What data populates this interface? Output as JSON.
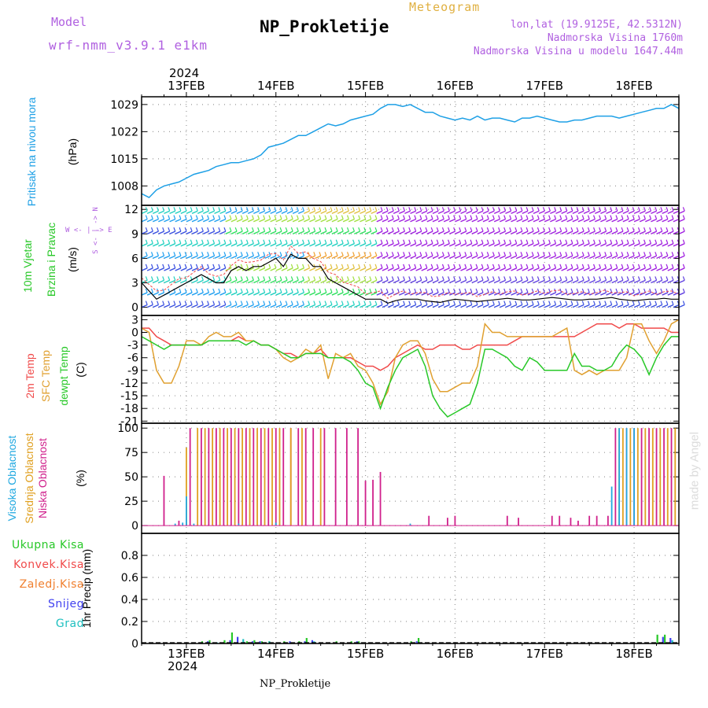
{
  "header": {
    "model_label": "Model",
    "model_name": "wrf-nmm_v3.9.1 e1km",
    "title": "NP_Prokletije",
    "subtitle": "Meteogram",
    "lonlat": "lon,lat (19.9125E, 42.5312N)",
    "altitude": "Nadmorska Visina 1760m",
    "model_altitude": "Nadmorska Visina u modelu 1647.44m",
    "watermark": "made by Angel",
    "footer": "NP_Prokletije"
  },
  "time_axis": {
    "year": "2024",
    "days": [
      "13FEB",
      "14FEB",
      "15FEB",
      "16FEB",
      "17FEB",
      "18FEB"
    ],
    "start_hour_offset": -12,
    "end_hour_offset": 132
  },
  "panels": {
    "pressure": {
      "label": "Pritisak na nivou mora",
      "unit": "(hPa)",
      "color": "#1ea0e6",
      "ticks": [
        "1008",
        "1015",
        "1022",
        "1029"
      ]
    },
    "wind": {
      "label1": "10m Vjetar",
      "label2": "Brzina i Pravac",
      "unit": "(m/s)",
      "compass": "W <- | -> E",
      "compass_ns": "S <- | -> N",
      "ticks": [
        "0",
        "3",
        "6",
        "9",
        "12"
      ]
    },
    "temperature": {
      "label1": "2m Temp",
      "label2": "SFC Temp",
      "label3": "dewpt Temp",
      "unit": "(C)",
      "colors": {
        "t2m": "#f04a4a",
        "sfc": "#e0a030",
        "dew": "#28c828"
      },
      "ticks": [
        "3",
        "0",
        "-3",
        "-6",
        "-9",
        "-12",
        "-15",
        "-18",
        "-21"
      ]
    },
    "cloud": {
      "label1": "Visoka Oblacnost",
      "label2": "Srednja Oblacnost",
      "label3": "Niska Oblacnost",
      "unit": "(%)",
      "colors": {
        "high": "#20a8e0",
        "mid": "#e0a020",
        "low": "#d0208c"
      },
      "ticks": [
        "0",
        "25",
        "50",
        "75",
        "100"
      ]
    },
    "precip": {
      "unit": "1hr Precip (mm)",
      "legend": [
        {
          "label": "Ukupna Kisa",
          "color": "#28c828"
        },
        {
          "label": "Konvek.Kisa",
          "color": "#f04a4a"
        },
        {
          "label": "Zaledj.Kisa",
          "color": "#f08030"
        },
        {
          "label": "Snijeg",
          "color": "#4040f0"
        },
        {
          "label": "Grad",
          "color": "#20c0c0"
        }
      ],
      "ticks": [
        "0",
        "0.2",
        "0.4",
        "0.6",
        "0.8"
      ]
    }
  },
  "chart_data": [
    {
      "type": "line",
      "name": "pressure",
      "x_unit": "hours from 13FEB 00UTC",
      "x": [
        -12,
        -10,
        -8,
        -6,
        -4,
        -2,
        0,
        2,
        4,
        6,
        8,
        10,
        12,
        14,
        16,
        18,
        20,
        22,
        24,
        26,
        28,
        30,
        32,
        34,
        36,
        38,
        40,
        42,
        44,
        46,
        48,
        50,
        52,
        54,
        56,
        58,
        60,
        62,
        64,
        66,
        68,
        70,
        72,
        74,
        76,
        78,
        80,
        82,
        84,
        86,
        88,
        90,
        92,
        94,
        96,
        98,
        100,
        102,
        104,
        106,
        108,
        110,
        112,
        114,
        116,
        118,
        120,
        122,
        124,
        126,
        128,
        130,
        132
      ],
      "y": [
        1006,
        1005,
        1007,
        1008,
        1008.5,
        1009,
        1010,
        1011,
        1011.5,
        1012,
        1013,
        1013.5,
        1014,
        1014,
        1014.5,
        1015,
        1016,
        1018,
        1018.5,
        1019,
        1020,
        1021,
        1021,
        1022,
        1023,
        1024,
        1023.5,
        1024,
        1025,
        1025.5,
        1026,
        1026.5,
        1028,
        1029,
        1029,
        1028.5,
        1029,
        1028,
        1027,
        1027,
        1026,
        1025.5,
        1025,
        1025.5,
        1025,
        1026,
        1025,
        1025.5,
        1025.5,
        1025,
        1024.5,
        1025.5,
        1025.5,
        1026,
        1025.5,
        1025,
        1024.5,
        1024.5,
        1025,
        1025,
        1025.5,
        1026,
        1026,
        1026,
        1025.5,
        1026,
        1026.5,
        1027,
        1027.5,
        1028,
        1028,
        1029,
        1028
      ],
      "ylim": [
        1003,
        1031
      ]
    },
    {
      "type": "line",
      "name": "2m Temp",
      "x": [
        -12,
        -10,
        -8,
        -6,
        -4,
        -2,
        0,
        2,
        4,
        6,
        8,
        10,
        12,
        14,
        16,
        18,
        20,
        22,
        24,
        26,
        28,
        30,
        32,
        34,
        36,
        38,
        40,
        42,
        44,
        46,
        48,
        50,
        52,
        54,
        56,
        58,
        60,
        62,
        64,
        66,
        68,
        70,
        72,
        74,
        76,
        78,
        80,
        82,
        84,
        86,
        88,
        90,
        92,
        94,
        96,
        98,
        100,
        102,
        104,
        106,
        108,
        110,
        112,
        114,
        116,
        118,
        120,
        122,
        124,
        126,
        128,
        130,
        132
      ],
      "y": [
        1,
        1,
        -1,
        -2,
        -3,
        -3,
        -3,
        -3,
        -3,
        -2,
        -2,
        -2,
        -2,
        -1,
        -2,
        -2,
        -3,
        -3,
        -4,
        -5,
        -5,
        -6,
        -5,
        -5,
        -4,
        -6,
        -6,
        -6,
        -6,
        -7,
        -8,
        -8,
        -9,
        -8,
        -6,
        -5,
        -4,
        -3,
        -4,
        -4,
        -3,
        -3,
        -3,
        -4,
        -4,
        -3,
        -3,
        -3,
        -3,
        -3,
        -2,
        -1,
        -1,
        -1,
        -1,
        -1,
        -1,
        -1,
        -1,
        0,
        1,
        2,
        2,
        2,
        1,
        2,
        2,
        1,
        1,
        1,
        1,
        0,
        0
      ],
      "ylim": [
        -21,
        3
      ]
    },
    {
      "type": "line",
      "name": "SFC Temp",
      "x": [
        -12,
        -10,
        -8,
        -6,
        -4,
        -2,
        0,
        2,
        4,
        6,
        8,
        10,
        12,
        14,
        16,
        18,
        20,
        22,
        24,
        26,
        28,
        30,
        32,
        34,
        36,
        38,
        40,
        42,
        44,
        46,
        48,
        50,
        52,
        54,
        56,
        58,
        60,
        62,
        64,
        66,
        68,
        70,
        72,
        74,
        76,
        78,
        80,
        82,
        84,
        86,
        88,
        90,
        92,
        94,
        96,
        98,
        100,
        102,
        104,
        106,
        108,
        110,
        112,
        114,
        116,
        118,
        120,
        122,
        124,
        126,
        128,
        130,
        132
      ],
      "y": [
        1,
        0,
        -9,
        -12,
        -12,
        -8,
        -2,
        -2,
        -3,
        -1,
        0,
        -1,
        -1,
        0,
        -2,
        -2,
        -3,
        -3,
        -4,
        -6,
        -7,
        -6,
        -4,
        -5,
        -3,
        -11,
        -5,
        -6,
        -5,
        -8,
        -9,
        -12,
        -17,
        -14,
        -6,
        -3,
        -2,
        -2,
        -5,
        -11,
        -14,
        -14,
        -13,
        -12,
        -12,
        -8,
        2,
        0,
        0,
        -1,
        -1,
        -1,
        -1,
        -1,
        -1,
        -1,
        0,
        1,
        -9,
        -10,
        -9,
        -10,
        -9,
        -9,
        -9,
        -6,
        2,
        2,
        -2,
        -5,
        -2,
        2,
        3
      ],
      "ylim": [
        -21,
        3
      ]
    },
    {
      "type": "line",
      "name": "dewpt Temp",
      "x": [
        -12,
        -10,
        -8,
        -6,
        -4,
        -2,
        0,
        2,
        4,
        6,
        8,
        10,
        12,
        14,
        16,
        18,
        20,
        22,
        24,
        26,
        28,
        30,
        32,
        34,
        36,
        38,
        40,
        42,
        44,
        46,
        48,
        50,
        52,
        54,
        56,
        58,
        60,
        62,
        64,
        66,
        68,
        70,
        72,
        74,
        76,
        78,
        80,
        82,
        84,
        86,
        88,
        90,
        92,
        94,
        96,
        98,
        100,
        102,
        104,
        106,
        108,
        110,
        112,
        114,
        116,
        118,
        120,
        122,
        124,
        126,
        128,
        130,
        132
      ],
      "y": [
        -1,
        -2,
        -3,
        -4,
        -3,
        -3,
        -3,
        -3,
        -3,
        -2,
        -2,
        -2,
        -2,
        -2,
        -3,
        -2,
        -3,
        -3,
        -4,
        -5,
        -6,
        -6,
        -5,
        -5,
        -5,
        -6,
        -6,
        -6,
        -7,
        -9,
        -12,
        -13,
        -18,
        -13,
        -9,
        -6,
        -5,
        -4,
        -8,
        -15,
        -18,
        -20,
        -19,
        -18,
        -17,
        -12,
        -4,
        -4,
        -5,
        -6,
        -8,
        -9,
        -6,
        -7,
        -9,
        -9,
        -9,
        -9,
        -5,
        -8,
        -8,
        -9,
        -9,
        -8,
        -5,
        -3,
        -4,
        -6,
        -10,
        -6,
        -3,
        -1,
        -1
      ],
      "ylim": [
        -21,
        3
      ]
    },
    {
      "type": "bar",
      "name": "cloud cover",
      "series": [
        {
          "name": "Niska Oblacnost",
          "x": [
            -6,
            -2,
            1,
            4,
            6,
            8,
            10,
            12,
            14,
            16,
            18,
            20,
            22,
            24,
            26,
            28,
            30,
            32,
            34,
            37,
            40,
            43,
            46,
            48,
            50,
            52,
            65,
            70,
            72,
            86,
            89,
            98,
            100,
            103,
            105,
            108,
            110,
            113,
            115,
            118,
            120,
            122,
            124,
            126,
            128,
            130
          ],
          "values": [
            51,
            5,
            100,
            100,
            100,
            100,
            100,
            100,
            100,
            100,
            100,
            100,
            100,
            100,
            100,
            100,
            100,
            100,
            100,
            100,
            100,
            100,
            100,
            46,
            47,
            55,
            10,
            8,
            10,
            10,
            8,
            10,
            10,
            8,
            5,
            10,
            10,
            10,
            100,
            100,
            100,
            100,
            100,
            100,
            100,
            100
          ]
        },
        {
          "name": "Srednja Oblacnost",
          "x": [
            0,
            3,
            5,
            7,
            9,
            11,
            13,
            15,
            17,
            19,
            21,
            23,
            25,
            28,
            31,
            36,
            116,
            117,
            119,
            121,
            123,
            125,
            127,
            129,
            131
          ],
          "values": [
            80,
            100,
            100,
            100,
            100,
            100,
            100,
            100,
            100,
            100,
            100,
            100,
            100,
            100,
            100,
            100,
            100,
            100,
            100,
            100,
            100,
            100,
            100,
            100,
            100
          ]
        },
        {
          "name": "Visoka Oblacnost",
          "x": [
            -3,
            -1,
            0,
            2,
            14,
            24,
            60,
            114,
            116,
            118,
            120
          ],
          "values": [
            2,
            3,
            30,
            2,
            2,
            3,
            2,
            40,
            100,
            100,
            100
          ]
        }
      ],
      "ylim": [
        0,
        100
      ]
    },
    {
      "type": "bar",
      "name": "1hr Precip",
      "series": [
        {
          "name": "Ukupna Kisa",
          "x": [
            4,
            6,
            10,
            12,
            16,
            18,
            20,
            22,
            26,
            30,
            32,
            40,
            44,
            46,
            60,
            62,
            126,
            128
          ],
          "values": [
            0.02,
            0.03,
            0.03,
            0.1,
            0.02,
            0.03,
            0.02,
            0.02,
            0.02,
            0.02,
            0.05,
            0.02,
            0.02,
            0.02,
            0.02,
            0.05,
            0.08,
            0.08
          ]
        },
        {
          "name": "Snijeg",
          "x": [
            5,
            11,
            13,
            17,
            19,
            27,
            31,
            33,
            45,
            61,
            127,
            129
          ],
          "values": [
            0.02,
            0.03,
            0.06,
            0.02,
            0.02,
            0.02,
            0.02,
            0.03,
            0.02,
            0.02,
            0.06,
            0.05
          ]
        },
        {
          "name": "Grad",
          "x": [
            7,
            14,
            21,
            33,
            129
          ],
          "values": [
            0.01,
            0.04,
            0.02,
            0.02,
            0.03
          ]
        }
      ],
      "ylim": [
        0,
        1.0
      ]
    }
  ]
}
